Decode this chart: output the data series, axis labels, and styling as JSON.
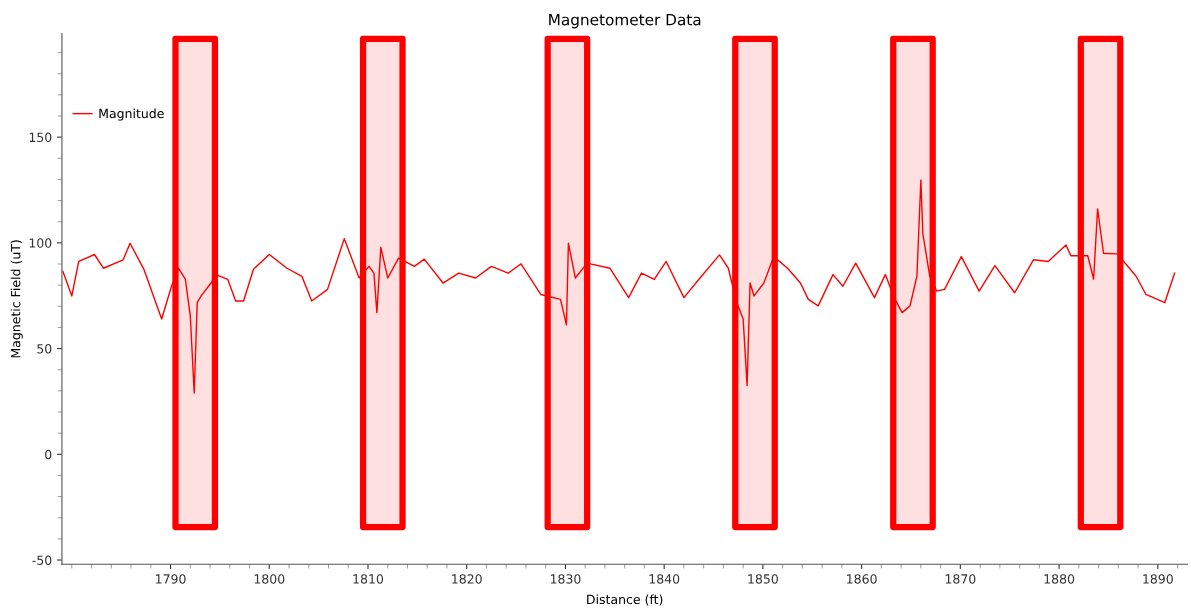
{
  "chart_data": {
    "type": "line",
    "title": "Magnetometer Data",
    "xlabel": "Distance (ft)",
    "ylabel": "Magnetic Field (uT)",
    "xlim": [
      1779,
      1893
    ],
    "ylim": [
      -52,
      199
    ],
    "xticks": [
      1790,
      1800,
      1810,
      1820,
      1830,
      1840,
      1850,
      1860,
      1870,
      1880,
      1890
    ],
    "yticks": [
      -50,
      0,
      50,
      100,
      150
    ],
    "grid": false,
    "legend": "top left",
    "marker": "none",
    "line_style": "solid",
    "series": [
      {
        "name": "Magnitude",
        "color": "#ff0000",
        "x": [
          1779.1,
          1780.0,
          1780.7,
          1782.3,
          1783.2,
          1785.2,
          1785.9,
          1787.3,
          1789.1,
          1790.1,
          1790.8,
          1791.5,
          1792.0,
          1792.4,
          1792.7,
          1793.1,
          1794.1,
          1794.6,
          1795.8,
          1796.6,
          1797.4,
          1798.4,
          1800.0,
          1801.8,
          1803.3,
          1804.3,
          1805.9,
          1807.6,
          1809.1,
          1810.1,
          1810.6,
          1810.9,
          1811.3,
          1812.0,
          1813.1,
          1814.7,
          1815.7,
          1817.6,
          1819.2,
          1820.9,
          1822.5,
          1824.2,
          1825.5,
          1827.5,
          1829.5,
          1830.1,
          1830.3,
          1831.0,
          1832.2,
          1834.5,
          1836.4,
          1837.7,
          1839.0,
          1840.2,
          1842.0,
          1843.5,
          1845.6,
          1846.5,
          1847.3,
          1848.0,
          1848.4,
          1848.7,
          1849.1,
          1850.1,
          1851.1,
          1852.5,
          1853.8,
          1854.6,
          1855.6,
          1857.1,
          1858.1,
          1859.4,
          1861.3,
          1862.4,
          1863.3,
          1864.1,
          1864.9,
          1865.6,
          1866.0,
          1866.2,
          1866.9,
          1867.6,
          1868.4,
          1870.1,
          1871.9,
          1873.5,
          1875.5,
          1877.4,
          1878.9,
          1880.7,
          1881.2,
          1882.9,
          1883.5,
          1883.9,
          1884.5,
          1885.9,
          1887.8,
          1888.8,
          1890.7,
          1891.7
        ],
        "values": [
          86.5,
          74.9,
          91.2,
          94.5,
          88,
          92,
          99.8,
          87.5,
          64,
          79.5,
          88,
          82.8,
          65.5,
          29,
          71.7,
          74.9,
          81,
          85,
          82.7,
          72.5,
          72.5,
          87.5,
          94.5,
          88,
          84.2,
          72.5,
          78,
          102,
          83.4,
          88.9,
          85.7,
          67,
          97.9,
          83.4,
          92.8,
          88.9,
          92.3,
          81,
          85.7,
          83.4,
          88.9,
          85.7,
          90.1,
          75.6,
          73.3,
          61.2,
          99.8,
          83.4,
          90.4,
          88,
          74.1,
          85.7,
          82.7,
          91.2,
          74.1,
          82.7,
          94.3,
          88,
          72.5,
          64,
          32.5,
          81,
          74.9,
          81,
          93.5,
          88,
          81,
          73.3,
          70.2,
          85,
          79.5,
          90.4,
          74.1,
          85,
          74.1,
          67,
          70.2,
          84.2,
          129.7,
          104.4,
          84.2,
          77.2,
          78,
          93.5,
          77.2,
          89.2,
          76.4,
          92,
          91.2,
          99,
          93.9,
          93.9,
          82.9,
          116.1,
          95.1,
          94.8,
          84.2,
          75.6,
          71.7,
          85.7
        ]
      }
    ],
    "bands": [
      {
        "axis": "x",
        "from": 1790.5,
        "to": 1794.5,
        "color": "#ff0000"
      },
      {
        "axis": "x",
        "from": 1809.5,
        "to": 1813.5,
        "color": "#ff0000"
      },
      {
        "axis": "x",
        "from": 1828.2,
        "to": 1832.2,
        "color": "#ff0000"
      },
      {
        "axis": "x",
        "from": 1847.2,
        "to": 1851.2,
        "color": "#ff0000"
      },
      {
        "axis": "x",
        "from": 1863.2,
        "to": 1867.2,
        "color": "#ff0000"
      },
      {
        "axis": "x",
        "from": 1882.2,
        "to": 1886.2,
        "color": "#ff0000"
      }
    ]
  }
}
